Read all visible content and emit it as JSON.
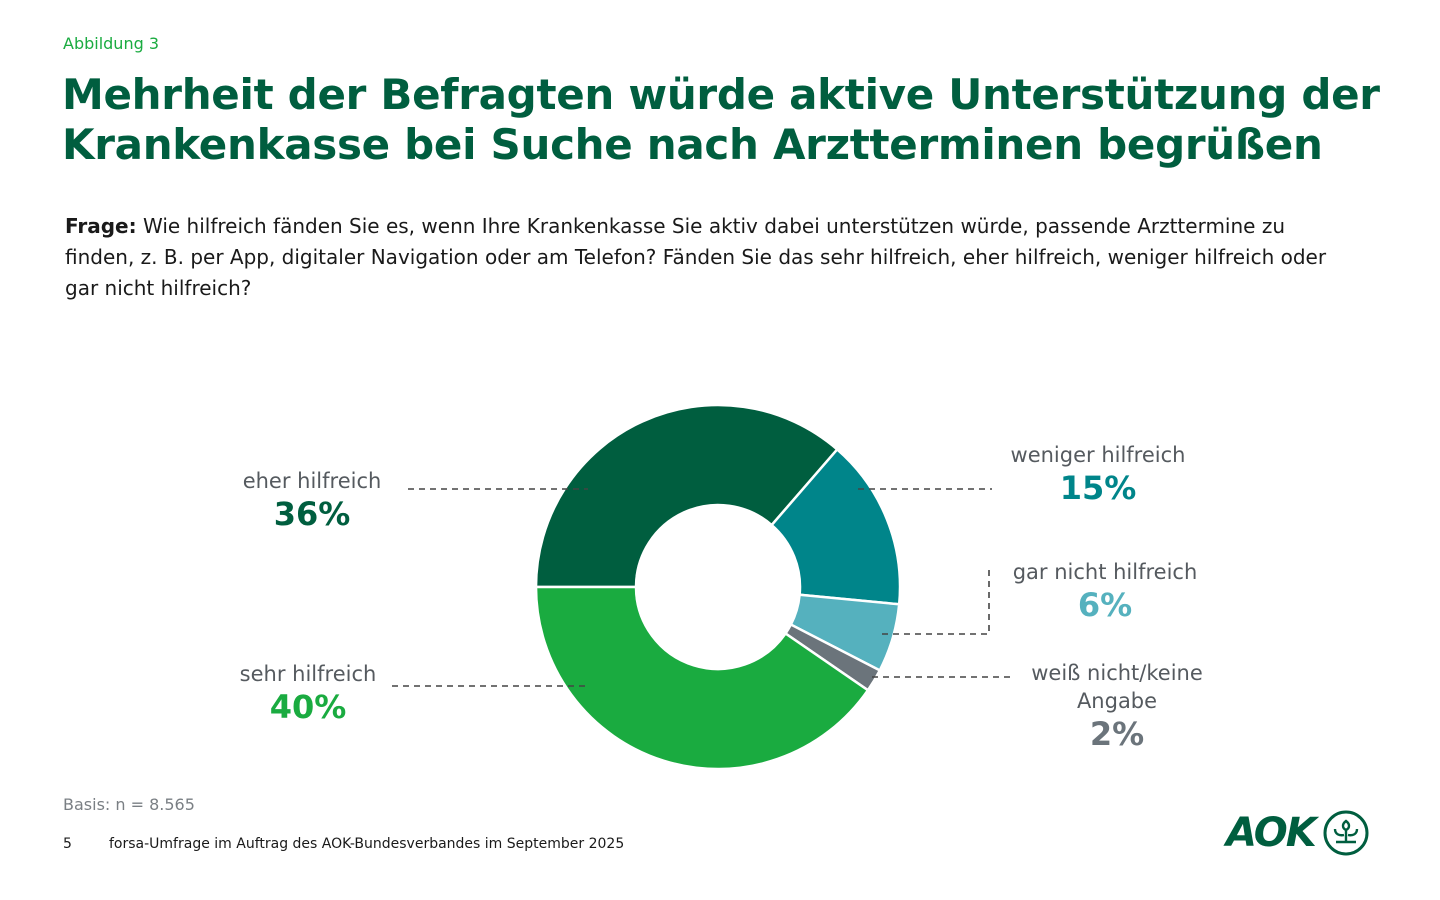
{
  "header": {
    "figure_label": "Abbildung 3",
    "title": "Mehrheit der Befragten würde aktive Unterstützung der Krankenkasse bei Suche nach Arztterminen begrüßen"
  },
  "question": {
    "prefix": "Frage:",
    "text": " Wie hilfreich fänden Sie es, wenn Ihre Krankenkasse Sie aktiv dabei unterstützen würde, passende Arzttermine zu finden, z. B. per App, digitaler Navigation oder am Telefon? Fänden Sie das sehr hilfreich, eher hilfreich, weniger hilfreich oder gar nicht hilfreich?"
  },
  "chart_data": {
    "type": "pie",
    "variant": "donut",
    "title": "",
    "categories": [
      "eher hilfreich",
      "weniger hilfreich",
      "gar nicht hilfreich",
      "weiß nicht/keine Angabe",
      "sehr hilfreich"
    ],
    "values": [
      36,
      15,
      6,
      2,
      40
    ],
    "unit": "%",
    "colors": [
      "#005e3f",
      "#00858a",
      "#55b1be",
      "#6b747b",
      "#1aab40"
    ],
    "labels": [
      {
        "name": "eher hilfreich",
        "value": "36%"
      },
      {
        "name": "weniger hilfreich",
        "value": "15%"
      },
      {
        "name": "gar nicht hilfreich",
        "value": "6%"
      },
      {
        "name": "weiß nicht/keine Angabe",
        "value": "2%"
      },
      {
        "name": "sehr hilfreich",
        "value": "40%"
      }
    ],
    "start_position": "9 o'clock, clockwise"
  },
  "footer": {
    "basis": "Basis: n = 8.565",
    "page_number": "5",
    "source": "forsa-Umfrage im Auftrag des AOK-Bundesverbandes im September 2025",
    "logo_text": "AOK"
  }
}
